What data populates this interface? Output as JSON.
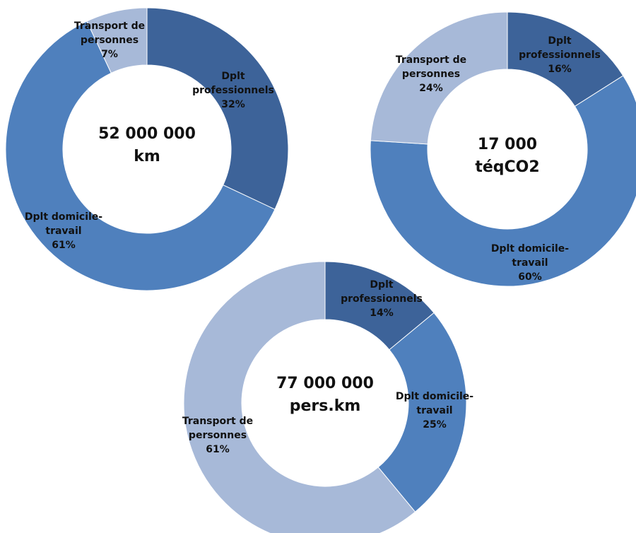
{
  "colors": {
    "dplt_professionnels": "#3d6399",
    "dplt_domicile_travail": "#4f80bd",
    "transport_de_personnes": "#a7b9d8",
    "separator": "#ffffff"
  },
  "chart_data": [
    {
      "type": "pie",
      "variant": "donut",
      "center_label": [
        "52 000 000",
        "km"
      ],
      "slices": [
        {
          "label": [
            "Dplt",
            "professionnels"
          ],
          "pct_label": "32%",
          "value": 32,
          "color_key": "dplt_professionnels"
        },
        {
          "label": [
            "Dplt domicile-",
            "travail"
          ],
          "pct_label": "61%",
          "value": 61,
          "color_key": "dplt_domicile_travail"
        },
        {
          "label": [
            "Transport de",
            "personnes"
          ],
          "pct_label": "7%",
          "value": 7,
          "color_key": "transport_de_personnes"
        }
      ]
    },
    {
      "type": "pie",
      "variant": "donut",
      "center_label": [
        "17 000",
        "téqCO2"
      ],
      "slices": [
        {
          "label": [
            "Dplt",
            "professionnels"
          ],
          "pct_label": "16%",
          "value": 16,
          "color_key": "dplt_professionnels"
        },
        {
          "label": [
            "Dplt domicile-",
            "travail"
          ],
          "pct_label": "60%",
          "value": 60,
          "color_key": "dplt_domicile_travail"
        },
        {
          "label": [
            "Transport de",
            "personnes"
          ],
          "pct_label": "24%",
          "value": 24,
          "color_key": "transport_de_personnes"
        }
      ]
    },
    {
      "type": "pie",
      "variant": "donut",
      "center_label": [
        "77 000 000",
        "pers.km"
      ],
      "slices": [
        {
          "label": [
            "Dplt",
            "professionnels"
          ],
          "pct_label": "14%",
          "value": 14,
          "color_key": "dplt_professionnels"
        },
        {
          "label": [
            "Dplt domicile-",
            "travail"
          ],
          "pct_label": "25%",
          "value": 25,
          "color_key": "dplt_domicile_travail"
        },
        {
          "label": [
            "Transport de",
            "personnes"
          ],
          "pct_label": "61%",
          "value": 61,
          "color_key": "transport_de_personnes"
        }
      ]
    }
  ]
}
